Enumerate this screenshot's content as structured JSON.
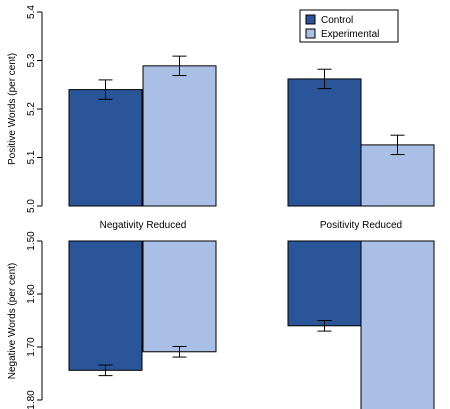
{
  "colors": {
    "control": "#2a5599",
    "experimental": "#a9bfe6",
    "stroke": "#000000"
  },
  "legend": {
    "position": "top-right",
    "items": [
      {
        "label": "Control",
        "color_key": "control"
      },
      {
        "label": "Experimental",
        "color_key": "experimental"
      }
    ]
  },
  "chart_data": [
    {
      "type": "bar",
      "panel": "top",
      "ylabel": "Positive Words (per cent)",
      "ylim": [
        5.0,
        5.4
      ],
      "yticks": [
        5.0,
        5.1,
        5.2,
        5.3,
        5.4
      ],
      "ytick_labels": [
        "5.0",
        "5.1",
        "5.2",
        "5.3",
        "5.4"
      ],
      "categories": [
        "Negativity Reduced",
        "Positivity Reduced"
      ],
      "series": [
        {
          "name": "Control",
          "values": [
            5.24,
            5.262
          ],
          "error": [
            0.02,
            0.02
          ]
        },
        {
          "name": "Experimental",
          "values": [
            5.289,
            5.126
          ],
          "error": [
            0.02,
            0.02
          ]
        }
      ]
    },
    {
      "type": "bar",
      "panel": "bottom",
      "ylabel": "Negative Words (per cent)",
      "ylim": [
        1.5,
        1.8
      ],
      "y_inverted": true,
      "yticks": [
        1.5,
        1.6,
        1.7,
        1.8
      ],
      "ytick_labels": [
        "1.50",
        "1.60",
        "1.70",
        "1.80"
      ],
      "categories": [
        "Negativity Reduced",
        "Positivity Reduced"
      ],
      "series": [
        {
          "name": "Control",
          "values": [
            1.744,
            1.66
          ],
          "error": [
            0.01,
            0.01
          ]
        },
        {
          "name": "Experimental",
          "values": [
            1.709,
            1.833
          ],
          "error": [
            0.01,
            0.01
          ]
        }
      ]
    }
  ]
}
